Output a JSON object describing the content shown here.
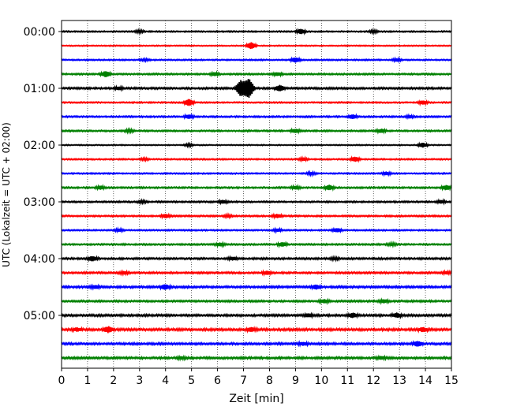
{
  "chart_data": {
    "type": "line",
    "title": "",
    "xlabel": "Zeit  [min]",
    "ylabel": "UTC (Lokalzeit = UTC + 02:00)",
    "xlim": [
      0,
      15
    ],
    "x_ticks": [
      "0",
      "1",
      "2",
      "3",
      "4",
      "5",
      "6",
      "7",
      "8",
      "9",
      "10",
      "11",
      "12",
      "13",
      "14",
      "15"
    ],
    "y_ticks": [
      "00:00",
      "01:00",
      "02:00",
      "03:00",
      "04:00",
      "05:00"
    ],
    "grid": "vertical dotted at each minute",
    "line_colors": [
      "#000000",
      "#ff0000",
      "#0000ff",
      "#008000"
    ],
    "trace_interval_min": 15,
    "traces": [
      {
        "start": "00:00",
        "color": "#000000",
        "amplitude": 0.25,
        "events": [
          [
            9.2,
            1.2
          ],
          [
            3.0,
            0.6
          ],
          [
            12.0,
            0.6
          ]
        ]
      },
      {
        "start": "00:15",
        "color": "#ff0000",
        "amplitude": 0.2,
        "events": [
          [
            7.3,
            1.8
          ]
        ]
      },
      {
        "start": "00:30",
        "color": "#0000ff",
        "amplitude": 0.25,
        "events": [
          [
            9.0,
            1.3
          ],
          [
            12.9,
            0.7
          ],
          [
            3.2,
            0.5
          ]
        ]
      },
      {
        "start": "00:45",
        "color": "#008000",
        "amplitude": 0.3,
        "events": [
          [
            1.7,
            1.5
          ],
          [
            5.9,
            0.8
          ],
          [
            8.3,
            0.8
          ]
        ]
      },
      {
        "start": "01:00",
        "color": "#000000",
        "amplitude": 0.35,
        "events": [
          [
            6.9,
            4.5
          ],
          [
            7.2,
            5.5
          ],
          [
            8.4,
            1.5
          ],
          [
            2.2,
            0.7
          ]
        ]
      },
      {
        "start": "01:15",
        "color": "#ff0000",
        "amplitude": 0.25,
        "events": [
          [
            4.9,
            1.8
          ],
          [
            13.9,
            1.0
          ]
        ]
      },
      {
        "start": "01:30",
        "color": "#0000ff",
        "amplitude": 0.3,
        "events": [
          [
            11.2,
            1.0
          ],
          [
            4.9,
            0.9
          ],
          [
            13.4,
            0.6
          ]
        ]
      },
      {
        "start": "01:45",
        "color": "#008000",
        "amplitude": 0.3,
        "events": [
          [
            9.0,
            0.9
          ],
          [
            12.3,
            0.9
          ],
          [
            2.6,
            0.6
          ]
        ]
      },
      {
        "start": "02:00",
        "color": "#000000",
        "amplitude": 0.2,
        "events": [
          [
            13.9,
            1.2
          ],
          [
            4.9,
            0.6
          ]
        ]
      },
      {
        "start": "02:15",
        "color": "#ff0000",
        "amplitude": 0.25,
        "events": [
          [
            11.3,
            1.2
          ],
          [
            9.3,
            0.7
          ],
          [
            3.2,
            0.5
          ]
        ]
      },
      {
        "start": "02:30",
        "color": "#0000ff",
        "amplitude": 0.25,
        "events": [
          [
            12.5,
            0.8
          ],
          [
            9.6,
            0.7
          ]
        ]
      },
      {
        "start": "02:45",
        "color": "#008000",
        "amplitude": 0.3,
        "events": [
          [
            10.3,
            1.3
          ],
          [
            14.8,
            1.2
          ],
          [
            1.5,
            0.8
          ],
          [
            9.0,
            0.8
          ]
        ]
      },
      {
        "start": "03:00",
        "color": "#000000",
        "amplitude": 0.3,
        "events": [
          [
            6.2,
            0.8
          ],
          [
            14.6,
            0.8
          ],
          [
            3.1,
            0.5
          ]
        ]
      },
      {
        "start": "03:15",
        "color": "#ff0000",
        "amplitude": 0.3,
        "events": [
          [
            4.0,
            1.0
          ],
          [
            8.3,
            0.9
          ],
          [
            6.4,
            0.6
          ]
        ]
      },
      {
        "start": "03:30",
        "color": "#0000ff",
        "amplitude": 0.25,
        "events": [
          [
            10.6,
            1.0
          ],
          [
            2.2,
            0.7
          ],
          [
            8.3,
            0.7
          ]
        ]
      },
      {
        "start": "03:45",
        "color": "#008000",
        "amplitude": 0.3,
        "events": [
          [
            8.5,
            1.0
          ],
          [
            6.1,
            0.8
          ],
          [
            12.7,
            0.6
          ]
        ]
      },
      {
        "start": "04:00",
        "color": "#000000",
        "amplitude": 0.35,
        "events": [
          [
            1.2,
            1.2
          ],
          [
            6.6,
            0.7
          ],
          [
            10.5,
            0.6
          ]
        ]
      },
      {
        "start": "04:15",
        "color": "#ff0000",
        "amplitude": 0.35,
        "events": [
          [
            7.9,
            0.8
          ],
          [
            14.8,
            0.6
          ],
          [
            2.4,
            0.6
          ]
        ]
      },
      {
        "start": "04:30",
        "color": "#0000ff",
        "amplitude": 0.4,
        "events": [
          [
            4.0,
            1.2
          ],
          [
            9.8,
            1.0
          ],
          [
            1.3,
            0.8
          ]
        ]
      },
      {
        "start": "04:45",
        "color": "#008000",
        "amplitude": 0.35,
        "events": [
          [
            10.1,
            0.8
          ],
          [
            12.4,
            0.8
          ]
        ]
      },
      {
        "start": "05:00",
        "color": "#000000",
        "amplitude": 0.4,
        "events": [
          [
            11.2,
            1.1
          ],
          [
            12.9,
            1.1
          ],
          [
            9.5,
            0.8
          ]
        ]
      },
      {
        "start": "05:15",
        "color": "#ff0000",
        "amplitude": 0.45,
        "events": [
          [
            1.8,
            1.5
          ],
          [
            7.3,
            1.0
          ],
          [
            13.9,
            1.0
          ],
          [
            0.6,
            0.8
          ]
        ]
      },
      {
        "start": "05:30",
        "color": "#0000ff",
        "amplitude": 0.4,
        "events": [
          [
            13.7,
            1.3
          ],
          [
            9.3,
            0.8
          ]
        ]
      },
      {
        "start": "05:45",
        "color": "#008000",
        "amplitude": 0.4,
        "events": [
          [
            12.3,
            0.7
          ],
          [
            4.6,
            0.6
          ]
        ]
      }
    ]
  }
}
